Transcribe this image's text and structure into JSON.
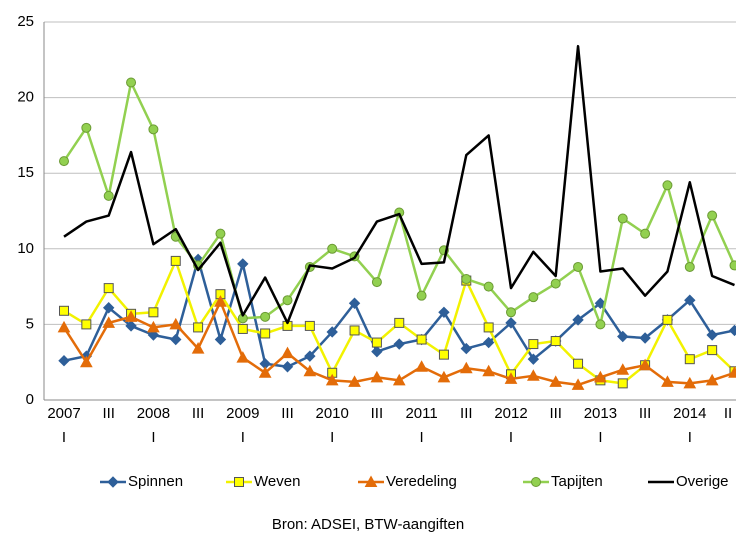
{
  "chart_data": {
    "type": "line",
    "categories": [
      "2007",
      null,
      null,
      null,
      "2008",
      null,
      null,
      null,
      "2009",
      null,
      null,
      null,
      "2010",
      null,
      null,
      null,
      "2011",
      null,
      null,
      null,
      "2012",
      null,
      null,
      null,
      "2013",
      null,
      null,
      null,
      "2014",
      null,
      null
    ],
    "category_sublabels": [
      "I",
      null,
      "III",
      null,
      "I",
      null,
      "III",
      null,
      "I",
      null,
      "III",
      null,
      "I",
      null,
      "III",
      null,
      "I",
      null,
      "III",
      null,
      "I",
      null,
      "III",
      null,
      "I",
      null,
      "III",
      null,
      "I",
      null,
      "II"
    ],
    "series": [
      {
        "name": "Spinnen",
        "color": "#2e5f99",
        "marker": "diamond",
        "values": [
          2.6,
          2.9,
          6.1,
          4.9,
          4.3,
          4.0,
          9.3,
          4.0,
          9.0,
          2.4,
          2.2,
          2.9,
          4.5,
          6.4,
          3.2,
          3.7,
          4.0,
          5.8,
          3.4,
          3.8,
          5.1,
          2.7,
          3.9,
          5.3,
          6.4,
          4.2,
          4.1,
          5.3,
          6.6,
          4.3,
          4.6
        ]
      },
      {
        "name": "Weven",
        "color": "#ffff00",
        "marker": "square",
        "values": [
          5.9,
          5.0,
          7.4,
          5.7,
          5.8,
          9.2,
          4.8,
          7.0,
          4.7,
          4.4,
          4.9,
          4.9,
          1.8,
          4.6,
          3.8,
          5.1,
          4.0,
          3.0,
          7.9,
          4.8,
          1.7,
          3.7,
          3.9,
          2.4,
          1.3,
          1.1,
          2.3,
          5.3,
          2.7,
          3.3,
          1.9
        ]
      },
      {
        "name": "Veredeling",
        "color": "#e36c09",
        "marker": "triangle",
        "values": [
          4.8,
          2.5,
          5.1,
          5.5,
          4.8,
          5.0,
          3.4,
          6.5,
          2.8,
          1.8,
          3.1,
          1.9,
          1.3,
          1.2,
          1.5,
          1.3,
          2.2,
          1.5,
          2.1,
          1.9,
          1.4,
          1.6,
          1.2,
          1.0,
          1.5,
          2.0,
          2.3,
          1.2,
          1.1,
          1.3,
          1.8
        ]
      },
      {
        "name": "Tapijten",
        "color": "#92d050",
        "marker": "circle",
        "values": [
          15.8,
          18.0,
          13.5,
          21.0,
          17.9,
          10.8,
          8.9,
          11.0,
          5.4,
          5.5,
          6.6,
          8.8,
          10.0,
          9.5,
          7.8,
          12.4,
          6.9,
          9.9,
          8.0,
          7.5,
          5.8,
          6.8,
          7.7,
          8.8,
          5.0,
          12.0,
          11.0,
          14.2,
          8.8,
          12.2,
          8.9
        ]
      },
      {
        "name": "Overige",
        "color": "#000000",
        "marker": "none",
        "values": [
          10.8,
          11.8,
          12.2,
          16.4,
          10.3,
          11.3,
          8.6,
          10.4,
          5.6,
          8.1,
          5.1,
          8.9,
          8.7,
          9.4,
          11.8,
          12.3,
          9.0,
          9.1,
          16.2,
          17.5,
          7.4,
          9.8,
          8.2,
          23.4,
          8.5,
          8.7,
          6.9,
          8.5,
          14.4,
          8.2,
          7.6
        ]
      }
    ],
    "ylim": [
      0,
      25
    ],
    "yticks": [
      0,
      5,
      10,
      15,
      20,
      25
    ],
    "grid": true,
    "legend": "bottom",
    "source": "Bron: ADSEI, BTW-aangiften"
  }
}
